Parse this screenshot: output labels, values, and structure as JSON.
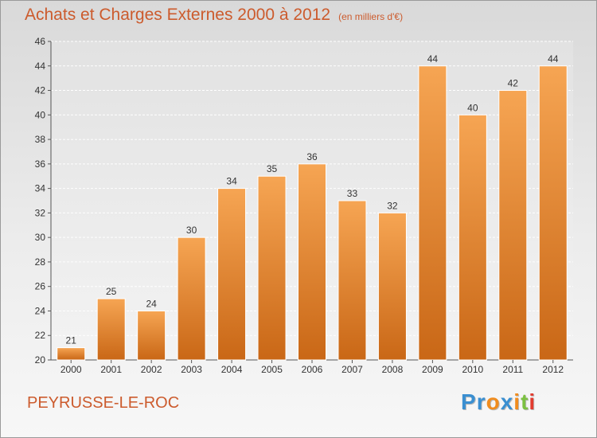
{
  "chart_data": {
    "type": "bar",
    "title": "Achats et Charges Externes 2000 à 2012",
    "subtitle": "(en milliers d'€)",
    "xlabel": "",
    "ylabel": "",
    "categories": [
      "2000",
      "2001",
      "2002",
      "2003",
      "2004",
      "2005",
      "2006",
      "2007",
      "2008",
      "2009",
      "2010",
      "2011",
      "2012"
    ],
    "values": [
      21,
      25,
      24,
      30,
      34,
      35,
      36,
      33,
      32,
      44,
      40,
      42,
      44
    ],
    "ylim": [
      20,
      46
    ],
    "yticks": [
      "20",
      "22",
      "24",
      "26",
      "28",
      "30",
      "32",
      "34",
      "36",
      "38",
      "40",
      "42",
      "44",
      "46"
    ],
    "grid": true,
    "legend": "none",
    "colors": {
      "bar_light": "#f6a553",
      "bar_dark": "#c96716",
      "text": "#cc5b2d"
    }
  },
  "footer": {
    "commune": "PEYRUSSE-LE-ROC",
    "brand_letters": [
      "P",
      "r",
      "o",
      "x",
      "i",
      "t",
      "i"
    ],
    "brand_colors": [
      "#3a8fd1",
      "#3a8fd1",
      "#f08c1e",
      "#3a8fd1",
      "#f08c1e",
      "#7cc142",
      "#e23b2e"
    ]
  }
}
